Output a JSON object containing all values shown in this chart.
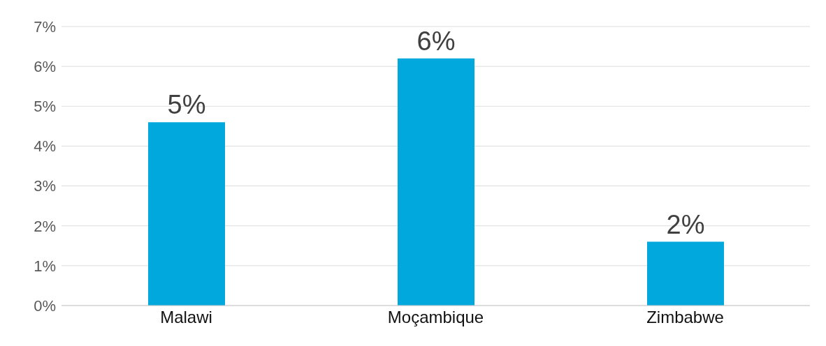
{
  "chart_data": {
    "type": "bar",
    "categories": [
      "Malawi",
      "Moçambique",
      "Zimbabwe"
    ],
    "values": [
      4.6,
      6.2,
      1.6
    ],
    "color": "#00a8de",
    "value_labels": [
      "5%",
      "6%",
      "2%"
    ],
    "ylim": [
      0,
      7
    ],
    "yticks": [
      {
        "value": 0,
        "label": "0%"
      },
      {
        "value": 1,
        "label": "1%"
      },
      {
        "value": 2,
        "label": "2%"
      },
      {
        "value": 3,
        "label": "3%"
      },
      {
        "value": 4,
        "label": "4%"
      },
      {
        "value": 5,
        "label": "5%"
      },
      {
        "value": 6,
        "label": "6%"
      },
      {
        "value": 7,
        "label": "7%"
      }
    ],
    "grid": "y",
    "legend": false
  }
}
